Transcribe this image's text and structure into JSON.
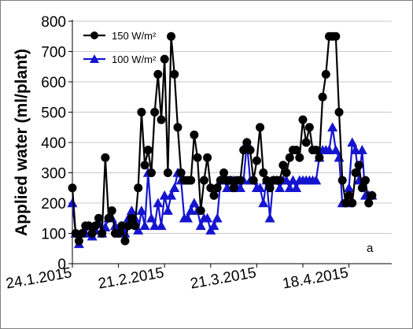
{
  "chart_data": {
    "type": "line",
    "panel_label": "a",
    "ylabel": "Applied water (ml/plant)",
    "xlabel": "",
    "ylim": [
      0,
      800
    ],
    "y_ticks": [
      "0",
      "100",
      "200",
      "300",
      "400",
      "500",
      "600",
      "700",
      "800"
    ],
    "x_tick_labels": [
      "24.1.2015",
      "21.2.2015",
      "21.3.2015",
      "18.4.2015"
    ],
    "xlim": [
      "2015-01-24",
      "2015-05-01"
    ],
    "grid": "horizontal",
    "legend_position": "top-left",
    "series": [
      {
        "name": "150 W/m²",
        "color": "#000000",
        "marker": "circle",
        "points": [
          [
            "2015-01-24",
            250
          ],
          [
            "2015-01-25",
            100
          ],
          [
            "2015-01-26",
            75
          ],
          [
            "2015-01-27",
            100
          ],
          [
            "2015-01-28",
            125
          ],
          [
            "2015-01-29",
            125
          ],
          [
            "2015-01-30",
            100
          ],
          [
            "2015-01-31",
            125
          ],
          [
            "2015-02-01",
            150
          ],
          [
            "2015-02-02",
            100
          ],
          [
            "2015-02-03",
            350
          ],
          [
            "2015-02-04",
            150
          ],
          [
            "2015-02-05",
            175
          ],
          [
            "2015-02-06",
            100
          ],
          [
            "2015-02-07",
            100
          ],
          [
            "2015-02-08",
            125
          ],
          [
            "2015-02-09",
            75
          ],
          [
            "2015-02-10",
            125
          ],
          [
            "2015-02-11",
            150
          ],
          [
            "2015-02-12",
            125
          ],
          [
            "2015-02-13",
            250
          ],
          [
            "2015-02-14",
            500
          ],
          [
            "2015-02-15",
            325
          ],
          [
            "2015-02-16",
            375
          ],
          [
            "2015-02-17",
            300
          ],
          [
            "2015-02-18",
            500
          ],
          [
            "2015-02-19",
            625
          ],
          [
            "2015-02-20",
            475
          ],
          [
            "2015-02-21",
            675
          ],
          [
            "2015-02-22",
            300
          ],
          [
            "2015-02-23",
            750
          ],
          [
            "2015-02-24",
            625
          ],
          [
            "2015-02-25",
            450
          ],
          [
            "2015-02-26",
            300
          ],
          [
            "2015-02-27",
            275
          ],
          [
            "2015-02-28",
            275
          ],
          [
            "2015-03-01",
            275
          ],
          [
            "2015-03-02",
            425
          ],
          [
            "2015-03-03",
            350
          ],
          [
            "2015-03-04",
            175
          ],
          [
            "2015-03-05",
            275
          ],
          [
            "2015-03-06",
            350
          ],
          [
            "2015-03-07",
            250
          ],
          [
            "2015-03-08",
            225
          ],
          [
            "2015-03-09",
            250
          ],
          [
            "2015-03-10",
            275
          ],
          [
            "2015-03-11",
            300
          ],
          [
            "2015-03-12",
            275
          ],
          [
            "2015-03-13",
            275
          ],
          [
            "2015-03-14",
            250
          ],
          [
            "2015-03-15",
            275
          ],
          [
            "2015-03-16",
            275
          ],
          [
            "2015-03-17",
            375
          ],
          [
            "2015-03-18",
            400
          ],
          [
            "2015-03-19",
            375
          ],
          [
            "2015-03-20",
            275
          ],
          [
            "2015-03-21",
            340
          ],
          [
            "2015-03-22",
            450
          ],
          [
            "2015-03-23",
            300
          ],
          [
            "2015-03-24",
            275
          ],
          [
            "2015-03-25",
            250
          ],
          [
            "2015-03-26",
            275
          ],
          [
            "2015-03-27",
            275
          ],
          [
            "2015-03-28",
            275
          ],
          [
            "2015-03-29",
            325
          ],
          [
            "2015-03-30",
            300
          ],
          [
            "2015-03-31",
            350
          ],
          [
            "2015-04-01",
            375
          ],
          [
            "2015-04-02",
            375
          ],
          [
            "2015-04-03",
            350
          ],
          [
            "2015-04-04",
            475
          ],
          [
            "2015-04-05",
            400
          ],
          [
            "2015-04-06",
            450
          ],
          [
            "2015-04-07",
            375
          ],
          [
            "2015-04-08",
            375
          ],
          [
            "2015-04-09",
            350
          ],
          [
            "2015-04-10",
            550
          ],
          [
            "2015-04-11",
            625
          ],
          [
            "2015-04-12",
            750
          ],
          [
            "2015-04-13",
            750
          ],
          [
            "2015-04-14",
            750
          ],
          [
            "2015-04-15",
            500
          ],
          [
            "2015-04-16",
            275
          ],
          [
            "2015-04-17",
            200
          ],
          [
            "2015-04-18",
            225
          ],
          [
            "2015-04-19",
            200
          ],
          [
            "2015-04-20",
            300
          ],
          [
            "2015-04-21",
            325
          ],
          [
            "2015-04-22",
            250
          ],
          [
            "2015-04-23",
            275
          ],
          [
            "2015-04-24",
            200
          ],
          [
            "2015-04-25",
            225
          ]
        ]
      },
      {
        "name": "100 W/m²",
        "color": "#1515d0",
        "marker": "triangle",
        "points": [
          [
            "2015-01-24",
            200
          ],
          [
            "2015-01-25",
            100
          ],
          [
            "2015-01-26",
            65
          ],
          [
            "2015-01-27",
            100
          ],
          [
            "2015-01-28",
            100
          ],
          [
            "2015-01-29",
            125
          ],
          [
            "2015-01-30",
            90
          ],
          [
            "2015-01-31",
            110
          ],
          [
            "2015-02-01",
            135
          ],
          [
            "2015-02-02",
            100
          ],
          [
            "2015-02-03",
            120
          ],
          [
            "2015-02-04",
            150
          ],
          [
            "2015-02-05",
            150
          ],
          [
            "2015-02-06",
            125
          ],
          [
            "2015-02-07",
            100
          ],
          [
            "2015-02-08",
            125
          ],
          [
            "2015-02-09",
            100
          ],
          [
            "2015-02-10",
            150
          ],
          [
            "2015-02-11",
            175
          ],
          [
            "2015-02-12",
            150
          ],
          [
            "2015-02-13",
            110
          ],
          [
            "2015-02-14",
            175
          ],
          [
            "2015-02-15",
            125
          ],
          [
            "2015-02-16",
            300
          ],
          [
            "2015-02-17",
            150
          ],
          [
            "2015-02-18",
            125
          ],
          [
            "2015-02-19",
            200
          ],
          [
            "2015-02-20",
            125
          ],
          [
            "2015-02-21",
            225
          ],
          [
            "2015-02-22",
            175
          ],
          [
            "2015-02-23",
            225
          ],
          [
            "2015-02-24",
            250
          ],
          [
            "2015-02-25",
            300
          ],
          [
            "2015-02-26",
            275
          ],
          [
            "2015-02-27",
            150
          ],
          [
            "2015-02-28",
            150
          ],
          [
            "2015-03-01",
            175
          ],
          [
            "2015-03-02",
            200
          ],
          [
            "2015-03-03",
            175
          ],
          [
            "2015-03-04",
            125
          ],
          [
            "2015-03-05",
            150
          ],
          [
            "2015-03-06",
            150
          ],
          [
            "2015-03-07",
            110
          ],
          [
            "2015-03-08",
            125
          ],
          [
            "2015-03-09",
            150
          ],
          [
            "2015-03-10",
            275
          ],
          [
            "2015-03-11",
            275
          ],
          [
            "2015-03-12",
            250
          ],
          [
            "2015-03-13",
            275
          ],
          [
            "2015-03-14",
            275
          ],
          [
            "2015-03-15",
            250
          ],
          [
            "2015-03-16",
            250
          ],
          [
            "2015-03-17",
            275
          ],
          [
            "2015-03-18",
            400
          ],
          [
            "2015-03-19",
            275
          ],
          [
            "2015-03-20",
            275
          ],
          [
            "2015-03-21",
            250
          ],
          [
            "2015-03-22",
            250
          ],
          [
            "2015-03-23",
            200
          ],
          [
            "2015-03-24",
            275
          ],
          [
            "2015-03-25",
            150
          ],
          [
            "2015-03-26",
            275
          ],
          [
            "2015-03-27",
            275
          ],
          [
            "2015-03-28",
            250
          ],
          [
            "2015-03-29",
            275
          ],
          [
            "2015-03-30",
            275
          ],
          [
            "2015-03-31",
            250
          ],
          [
            "2015-04-01",
            275
          ],
          [
            "2015-04-02",
            250
          ],
          [
            "2015-04-03",
            275
          ],
          [
            "2015-04-04",
            275
          ],
          [
            "2015-04-05",
            275
          ],
          [
            "2015-04-06",
            275
          ],
          [
            "2015-04-07",
            275
          ],
          [
            "2015-04-08",
            275
          ],
          [
            "2015-04-09",
            350
          ],
          [
            "2015-04-10",
            375
          ],
          [
            "2015-04-11",
            375
          ],
          [
            "2015-04-12",
            375
          ],
          [
            "2015-04-13",
            450
          ],
          [
            "2015-04-14",
            375
          ],
          [
            "2015-04-15",
            350
          ],
          [
            "2015-04-16",
            200
          ],
          [
            "2015-04-17",
            200
          ],
          [
            "2015-04-18",
            250
          ],
          [
            "2015-04-19",
            400
          ],
          [
            "2015-04-20",
            375
          ],
          [
            "2015-04-21",
            275
          ],
          [
            "2015-04-22",
            375
          ],
          [
            "2015-04-23",
            225
          ],
          [
            "2015-04-24",
            225
          ],
          [
            "2015-04-25",
            225
          ]
        ]
      }
    ]
  }
}
